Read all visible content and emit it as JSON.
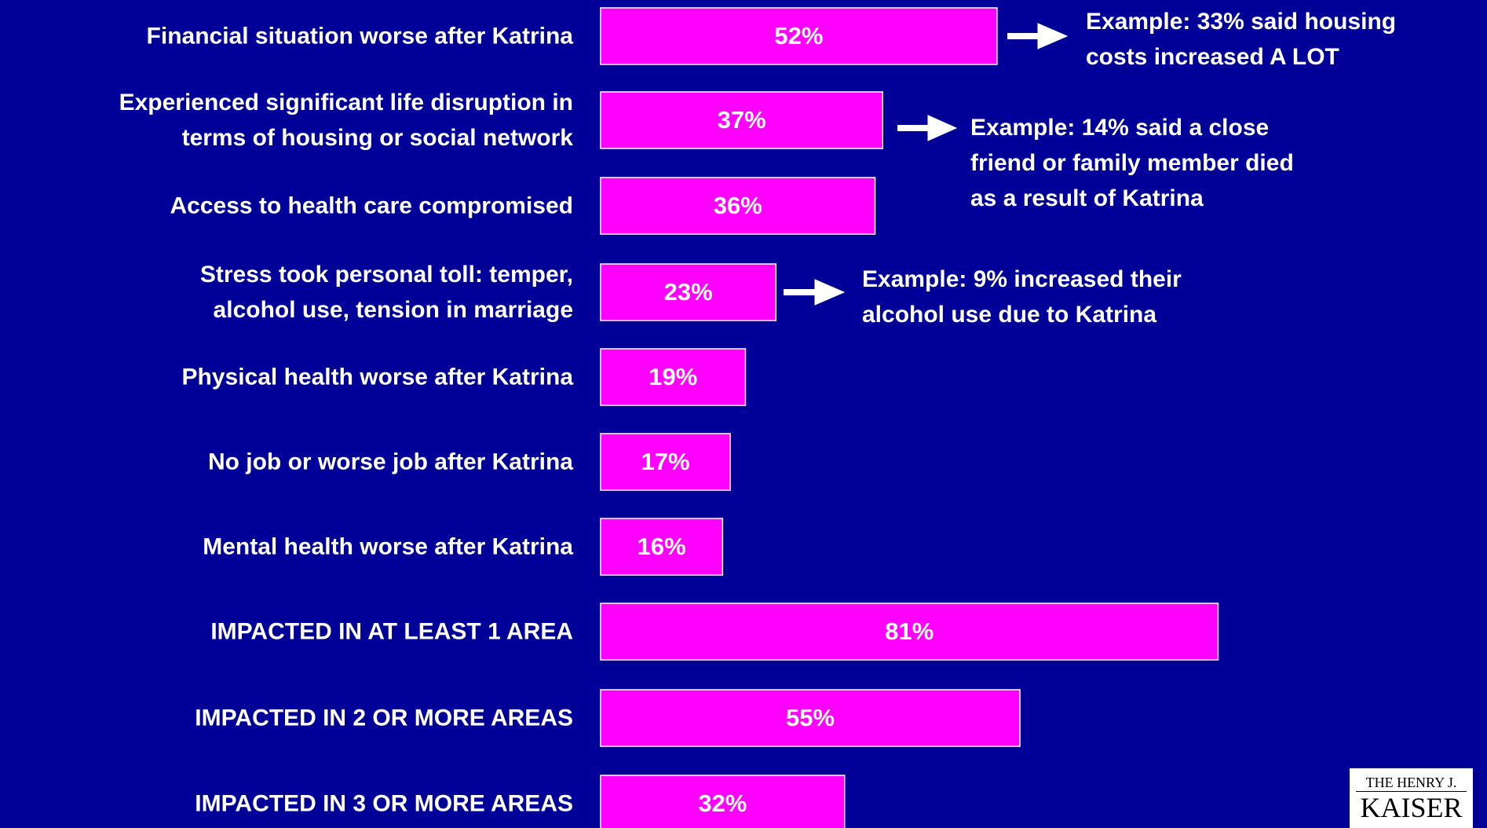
{
  "chart_data": {
    "type": "bar",
    "orientation": "horizontal",
    "color": "#ff00ff",
    "categories": [
      "Financial situation worse after Katrina",
      "Experienced significant life disruption in\nterms of housing or social network",
      "Access to health care compromised",
      "Stress took personal toll: temper,\nalcohol use, tension in marriage",
      "Physical health worse after Katrina",
      "No job or worse job after Katrina",
      "Mental health worse after Katrina",
      "IMPACTED IN AT LEAST 1 AREA",
      "IMPACTED IN 2 OR MORE AREAS",
      "IMPACTED IN 3 OR MORE AREAS"
    ],
    "values": [
      52,
      37,
      36,
      23,
      19,
      17,
      16,
      81,
      55,
      32
    ],
    "value_labels": [
      "52%",
      "37%",
      "36%",
      "23%",
      "19%",
      "17%",
      "16%",
      "81%",
      "55%",
      "32%"
    ],
    "annotations": [
      "Example: 33% said housing\ncosts increased A LOT",
      "Example: 14% said a close\nfriend or family member died\nas a result of Katrina",
      "Example: 9% increased their\nalcohol use due to Katrina"
    ],
    "logo": [
      "THE HENRY J.",
      "KAISER"
    ]
  }
}
